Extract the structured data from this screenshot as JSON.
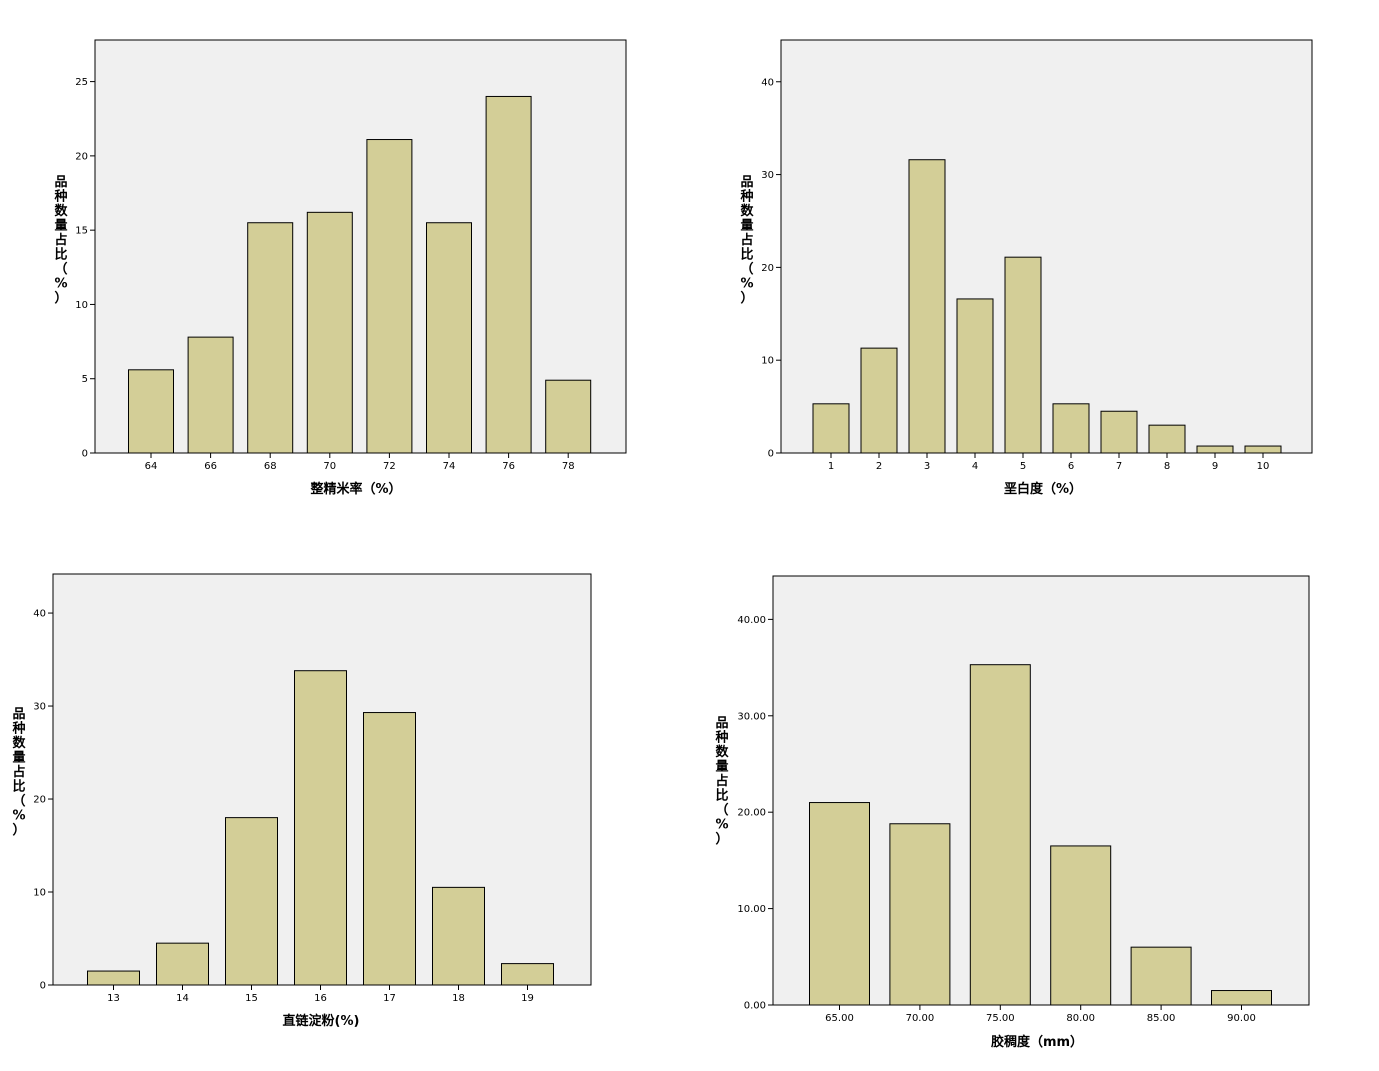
{
  "chart_data": [
    {
      "type": "bar",
      "categories": [
        "64",
        "66",
        "68",
        "70",
        "72",
        "74",
        "76",
        "78"
      ],
      "values": [
        5.6,
        7.8,
        15.5,
        16.2,
        21.1,
        15.5,
        24.0,
        4.9
      ],
      "xlabel": "整精米率（%）",
      "ylabel": "品种数量占比（%）",
      "ylim": [
        0,
        27.8
      ],
      "yticks": [
        "0",
        "5",
        "10",
        "15",
        "20",
        "25"
      ],
      "ytick_values": [
        0,
        5,
        10,
        15,
        20,
        25
      ]
    },
    {
      "type": "bar",
      "categories": [
        "1",
        "2",
        "3",
        "4",
        "5",
        "6",
        "7",
        "8",
        "9",
        "10"
      ],
      "values": [
        5.3,
        11.3,
        31.6,
        16.6,
        21.1,
        5.3,
        4.5,
        3.0,
        0.75,
        0.75
      ],
      "xlabel": "垩白度（%）",
      "ylabel": "品种数量占比（%）",
      "ylim": [
        0,
        44.5
      ],
      "yticks": [
        "0",
        "10",
        "20",
        "30",
        "40"
      ],
      "ytick_values": [
        0,
        10,
        20,
        30,
        40
      ]
    },
    {
      "type": "bar",
      "categories": [
        "13",
        "14",
        "15",
        "16",
        "17",
        "18",
        "19"
      ],
      "values": [
        1.5,
        4.5,
        18.0,
        33.8,
        29.3,
        10.5,
        2.3
      ],
      "xlabel": "直链淀粉(%)",
      "ylabel": "品种数量占比（%）",
      "ylim": [
        0,
        44.2
      ],
      "yticks": [
        "0",
        "10",
        "20",
        "30",
        "40"
      ],
      "ytick_values": [
        0,
        10,
        20,
        30,
        40
      ]
    },
    {
      "type": "bar",
      "categories": [
        "65.00",
        "70.00",
        "75.00",
        "80.00",
        "85.00",
        "90.00"
      ],
      "values": [
        21.0,
        18.8,
        35.3,
        16.5,
        6.0,
        1.5
      ],
      "xlabel": "胶稠度（mm）",
      "ylabel": "品种数量占比（%）",
      "ylim": [
        0,
        44.5
      ],
      "yticks": [
        "0.00",
        "10.00",
        "20.00",
        "30.00",
        "40.00"
      ],
      "ytick_values": [
        0,
        10,
        20,
        30,
        40
      ]
    }
  ]
}
